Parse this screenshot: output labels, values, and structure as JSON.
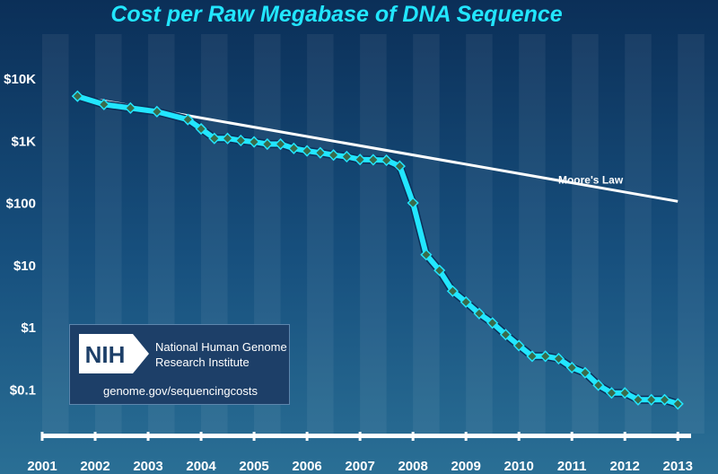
{
  "chart_data": {
    "type": "line",
    "title": "Cost per Raw Megabase of DNA Sequence",
    "xlabel": "",
    "ylabel": "",
    "y_scale": "log",
    "ylim": [
      0.02,
      10000
    ],
    "xlim": [
      "2001-01",
      "2013-03"
    ],
    "y_ticks": [
      {
        "value": 10000,
        "label": "$10K"
      },
      {
        "value": 1000,
        "label": "$1K"
      },
      {
        "value": 100,
        "label": "$100"
      },
      {
        "value": 10,
        "label": "$10"
      },
      {
        "value": 1,
        "label": "$1"
      },
      {
        "value": 0.1,
        "label": "$0.1"
      }
    ],
    "x_ticks": [
      "2001",
      "2002",
      "2003",
      "2004",
      "2005",
      "2006",
      "2007",
      "2008",
      "2009",
      "2010",
      "2011",
      "2012",
      "2013"
    ],
    "series": [
      {
        "color": "#22e6ff",
        "marker": "diamond",
        "points": [
          [
            "2001-09",
            5292
          ],
          [
            "2002-03",
            3898
          ],
          [
            "2002-09",
            3413
          ],
          [
            "2003-03",
            2987
          ],
          [
            "2003-10",
            2231
          ],
          [
            "2004-01",
            1580
          ],
          [
            "2004-04",
            1108
          ],
          [
            "2004-07",
            1108
          ],
          [
            "2004-10",
            1028
          ],
          [
            "2005-01",
            975
          ],
          [
            "2005-04",
            898
          ],
          [
            "2005-07",
            898
          ],
          [
            "2005-10",
            766
          ],
          [
            "2006-01",
            699
          ],
          [
            "2006-04",
            652
          ],
          [
            "2006-07",
            599
          ],
          [
            "2006-10",
            565
          ],
          [
            "2007-01",
            508
          ],
          [
            "2007-04",
            503
          ],
          [
            "2007-07",
            495
          ],
          [
            "2007-10",
            397
          ],
          [
            "2008-01",
            102
          ],
          [
            "2008-04",
            15.0
          ],
          [
            "2008-07",
            8.4
          ],
          [
            "2008-10",
            3.9
          ],
          [
            "2009-01",
            2.6
          ],
          [
            "2009-04",
            1.7
          ],
          [
            "2009-07",
            1.2
          ],
          [
            "2009-10",
            0.78
          ],
          [
            "2010-01",
            0.52
          ],
          [
            "2010-04",
            0.35
          ],
          [
            "2010-07",
            0.35
          ],
          [
            "2010-10",
            0.32
          ],
          [
            "2011-01",
            0.23
          ],
          [
            "2011-04",
            0.19
          ],
          [
            "2011-07",
            0.12
          ],
          [
            "2011-10",
            0.09
          ],
          [
            "2012-01",
            0.09
          ],
          [
            "2012-04",
            0.07
          ],
          [
            "2012-07",
            0.07
          ],
          [
            "2012-10",
            0.07
          ],
          [
            "2013-01",
            0.06
          ]
        ]
      },
      {
        "name": "Moore's Law",
        "color": "#ffffff",
        "marker": "none",
        "points": [
          [
            "2001-09",
            5292
          ],
          [
            "2013-01",
            108
          ]
        ]
      }
    ],
    "annotations": [
      {
        "text": "Moore's Law",
        "at": [
          "2011-04",
          210
        ]
      }
    ],
    "grid": false
  },
  "logo": {
    "mark": "NIH",
    "organization_line1": "National Human Genome",
    "organization_line2": "Research Institute",
    "url": "genome.gov/sequencingcosts"
  }
}
